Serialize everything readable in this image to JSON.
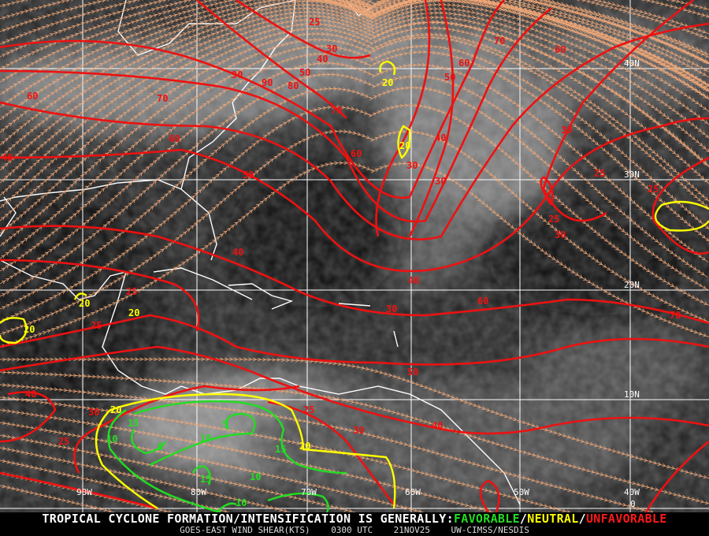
{
  "product": {
    "headline": "TROPICAL CYCLONE FORMATION/INTENSIFICATION IS GENERALLY:",
    "favorable": "FAVORABLE",
    "neutral": "NEUTRAL",
    "unfavorable": "UNFAVORABLE",
    "separator": "/",
    "product_name": "GOES-EAST WIND SHEAR(KTS)",
    "time": "0300 UTC",
    "date": "21NOV25",
    "source": "UW-CIMSS/NESDIS"
  },
  "grid": {
    "longitudes": [
      "90W",
      "80W",
      "70W",
      "60W",
      "50W",
      "40W"
    ],
    "latitudes": [
      "40N",
      "30N",
      "20N",
      "10N",
      "0"
    ]
  },
  "colors": {
    "unfavorable": "#ee1111",
    "neutral": "#ffff00",
    "favorable": "#22dd22",
    "streamlines": "#f0a878",
    "coastline": "#ffffff",
    "gridlines": "#ffffff"
  },
  "contour_labels": {
    "unfavorable": [
      "25",
      "30",
      "40",
      "50",
      "90",
      "90",
      "80",
      "60",
      "70",
      "70",
      "60",
      "40",
      "60",
      "50",
      "40",
      "30",
      "30",
      "70",
      "60",
      "60",
      "50",
      "30",
      "25",
      "25",
      "25",
      "30",
      "40",
      "40",
      "30",
      "60",
      "70",
      "25",
      "25",
      "50",
      "40",
      "30",
      "25",
      "25",
      "30",
      "40"
    ],
    "neutral": [
      "20",
      "20",
      "20",
      "20",
      "20",
      "20",
      "20"
    ],
    "favorable": [
      "15",
      "10",
      "5",
      "10",
      "5",
      "15",
      "15",
      "10",
      "10"
    ]
  }
}
